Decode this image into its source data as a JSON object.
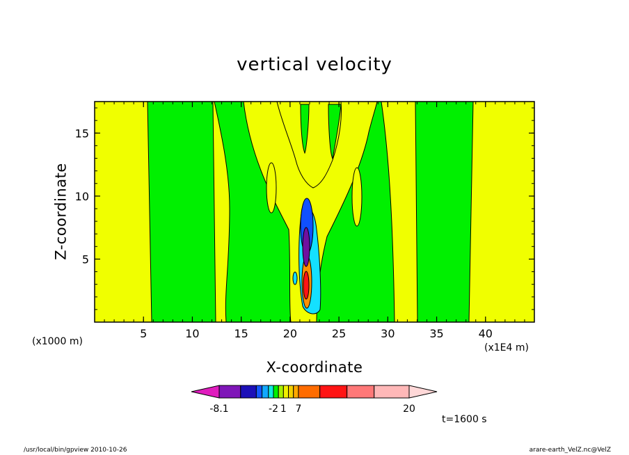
{
  "chart_data": {
    "type": "heatmap",
    "title": "vertical velocity",
    "xlabel": "X-coordinate",
    "ylabel": "Z-coordinate",
    "x_unit_left": "(x1000 m)",
    "x_unit_right": "(x1E4 m)",
    "xlim": [
      0,
      45
    ],
    "ylim": [
      0,
      17.5
    ],
    "x_ticks": [
      5,
      10,
      15,
      20,
      25,
      30,
      35,
      40
    ],
    "y_ticks": [
      5,
      10,
      15
    ],
    "grid": false,
    "time_label": "t=1600 s",
    "colorbar": {
      "levels": [
        -8.1,
        -6.8,
        -5.4,
        -4.1,
        -3.4,
        -2.7,
        -2,
        -1.4,
        -0.7,
        0,
        1,
        2,
        3,
        4,
        5,
        6,
        7,
        10,
        13,
        16,
        20
      ],
      "tick_labels": [
        {
          "value": -8.1,
          "label": "-8.1"
        },
        {
          "value": -2,
          "label": "-2"
        },
        {
          "value": 1,
          "label": "1"
        },
        {
          "value": 7,
          "label": "7"
        },
        {
          "value": 20,
          "label": "20"
        }
      ],
      "colors": [
        "#e01cbe",
        "#7f16b8",
        "#1c10b8",
        "#1458ff",
        "#12a8ff",
        "#12e8e0",
        "#00f000",
        "#a8f000",
        "#f0f000",
        "#f4d000",
        "#ffa800",
        "#ff6c00",
        "#ff1414",
        "#ff7878",
        "#ffb8b8",
        "#ffd8d8"
      ]
    },
    "regions_description_colors": {
      "green": "#00ff00",
      "yellow": "#f0ff00",
      "cyan": "#14e0ff",
      "blue": "#1050ff",
      "orange": "#ff9000",
      "purple": "#7010a0"
    },
    "columns": [
      {
        "x0": 0.0,
        "x1": 5.4,
        "value": 0.5
      },
      {
        "x0": 5.4,
        "x1": 12.1,
        "value": -0.3
      },
      {
        "x0": 12.1,
        "x1": 13.6,
        "value": 0.5
      },
      {
        "x0": 13.6,
        "x1": 19.5,
        "value": -0.3
      },
      {
        "x0": 19.5,
        "x1": 24.8,
        "value": 0.5
      },
      {
        "x0": 24.8,
        "x1": 30.4,
        "value": -0.3
      },
      {
        "x0": 30.4,
        "x1": 32.9,
        "value": 0.5
      },
      {
        "x0": 32.9,
        "x1": 38.4,
        "value": -0.3
      },
      {
        "x0": 38.4,
        "x1": 45.0,
        "value": 0.5
      }
    ]
  },
  "footer": {
    "left": "/usr/local/bin/gpview  2010-10-26",
    "right": "arare-earth_VelZ.nc@VelZ"
  }
}
